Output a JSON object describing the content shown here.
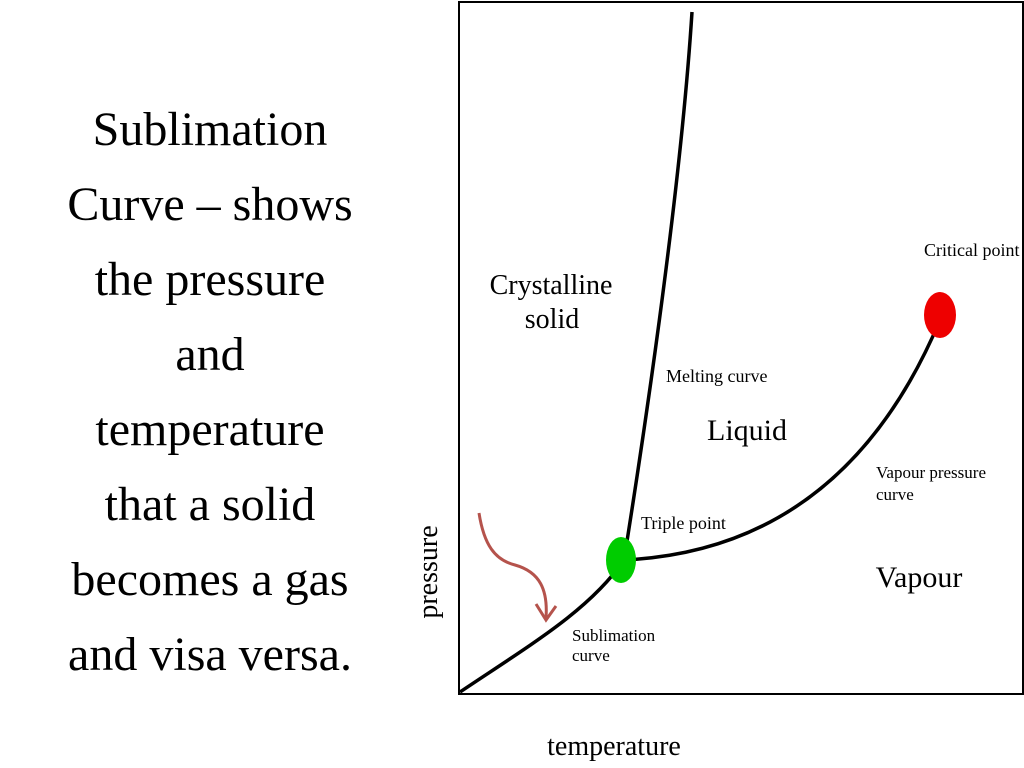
{
  "slide": {
    "text_lines": [
      "Sublimation",
      "Curve – shows",
      "the pressure",
      "and",
      "temperature",
      "that a solid",
      "becomes a gas",
      "and visa versa."
    ]
  },
  "diagram": {
    "axes": {
      "xlabel": "temperature",
      "ylabel": "pressure"
    },
    "regions": {
      "solid_line1": "Crystalline",
      "solid_line2": "solid",
      "liquid": "Liquid",
      "vapour": "Vapour"
    },
    "curves": {
      "melting": "Melting curve",
      "vapour_pressure_line1": "Vapour pressure",
      "vapour_pressure_line2": "curve",
      "sublimation_line1": "Sublimation",
      "sublimation_line2": "curve"
    },
    "points": {
      "triple": "Triple point",
      "critical": "Critical point"
    },
    "colors": {
      "triple_point": "#00cc00",
      "critical_point": "#ee0000",
      "arrow": "#b5534c",
      "curves": "#000000"
    }
  }
}
